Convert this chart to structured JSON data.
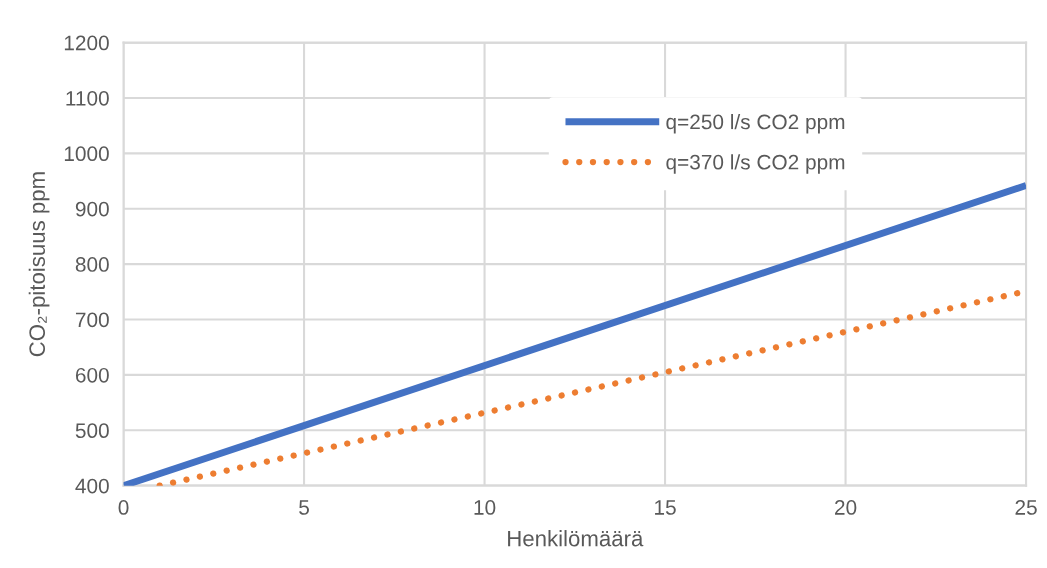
{
  "chart_data": {
    "type": "line",
    "xlabel": "Henkilömäärä",
    "ylabel": "CO₂-pitoisuus ppm",
    "series": [
      {
        "name": "q=250 l/s CO2 ppm",
        "color": "#4472c4",
        "x": [
          0,
          25
        ],
        "values": [
          400,
          942
        ],
        "line_style": "solid"
      },
      {
        "name": "q=370 l/s CO2 ppm",
        "color": "#ed7d31",
        "x": [
          1,
          24.8
        ],
        "values": [
          400,
          748
        ],
        "line_style": "dotted"
      }
    ],
    "xlim": [
      0,
      25
    ],
    "xticks": [
      0,
      5,
      10,
      15,
      20,
      25
    ],
    "ylim": [
      400,
      1200
    ],
    "yticks": [
      400,
      500,
      600,
      700,
      800,
      900,
      1000,
      1100,
      1200
    ],
    "grid": true,
    "legend": "top right",
    "marker": "none"
  }
}
